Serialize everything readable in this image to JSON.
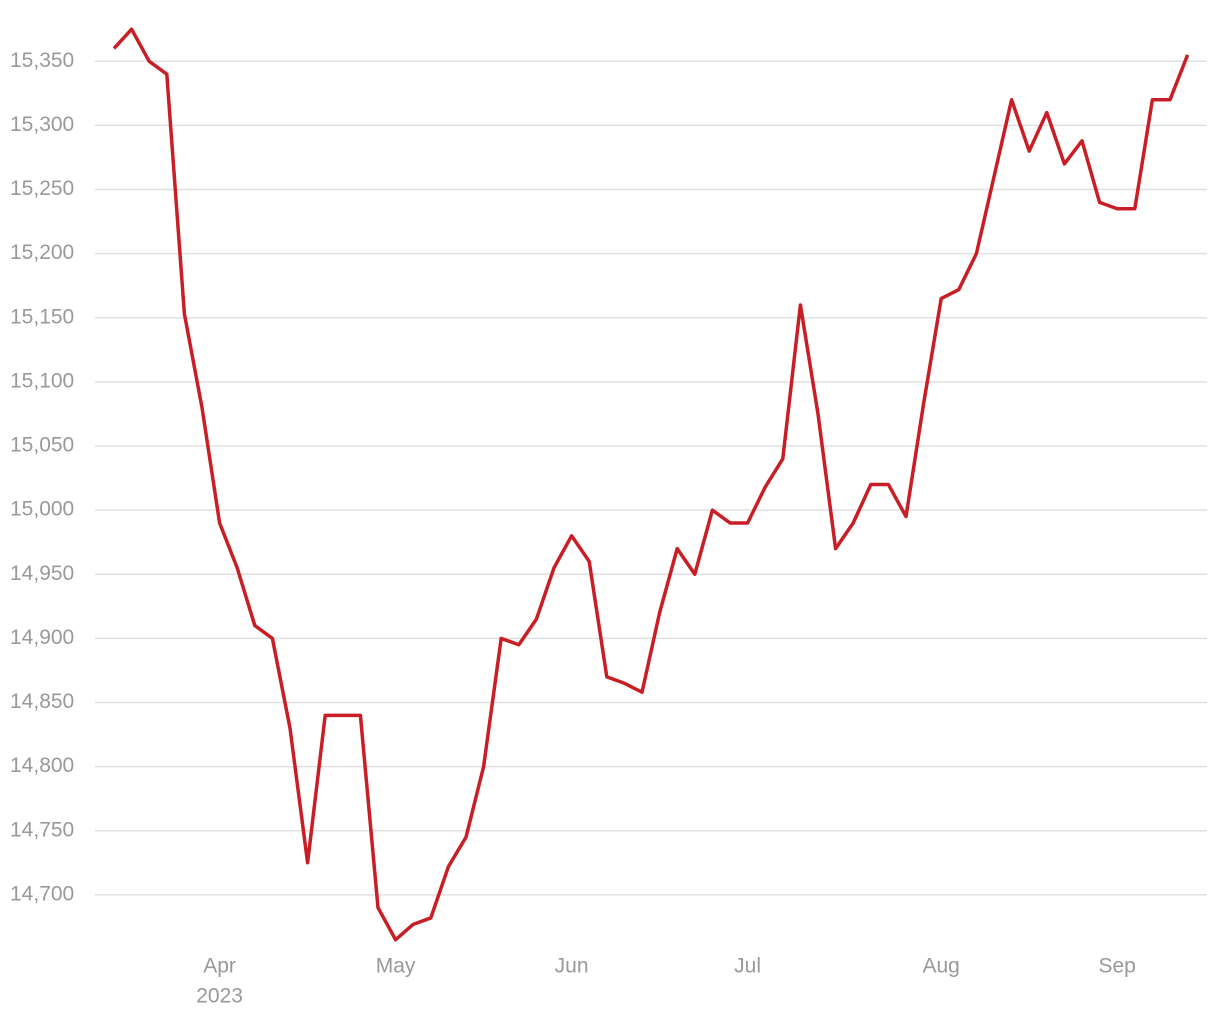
{
  "chart_data": {
    "type": "line",
    "categories": [
      null,
      null,
      null,
      null,
      null,
      null,
      "Apr",
      null,
      null,
      null,
      null,
      null,
      null,
      null,
      null,
      null,
      "May",
      null,
      null,
      null,
      null,
      null,
      null,
      null,
      null,
      null,
      "Jun",
      null,
      null,
      null,
      null,
      null,
      null,
      null,
      null,
      null,
      "Jul",
      null,
      null,
      null,
      null,
      null,
      null,
      null,
      null,
      null,
      null,
      "Aug",
      null,
      null,
      null,
      null,
      null,
      null,
      null,
      null,
      null,
      "Sep",
      null,
      null,
      null,
      null
    ],
    "x_year_label": "2023",
    "series": [
      {
        "color": "#c81e25",
        "values": [
          15360,
          15375,
          15350,
          15340,
          15153,
          15080,
          14990,
          14955,
          14910,
          14900,
          14830,
          14725,
          14840,
          14840,
          14840,
          14690,
          14665,
          14677,
          14682,
          14722,
          14745,
          14800,
          14900,
          14895,
          14915,
          14955,
          14980,
          14960,
          14870,
          14865,
          14858,
          14920,
          14970,
          14950,
          15000,
          14990,
          14990,
          15018,
          15040,
          15160,
          15075,
          14970,
          14990,
          15020,
          15020,
          14995,
          15083,
          15165,
          15172,
          15200,
          15260,
          15320,
          15280,
          15310,
          15270,
          15288,
          15240,
          15235,
          15235,
          15320,
          15320,
          15355
        ]
      }
    ],
    "ylim": [
      14657,
      15390
    ],
    "yticks": [
      {
        "value": 14700,
        "label": "14,700"
      },
      {
        "value": 14750,
        "label": "14,750"
      },
      {
        "value": 14800,
        "label": "14,800"
      },
      {
        "value": 14850,
        "label": "14,850"
      },
      {
        "value": 14900,
        "label": "14,900"
      },
      {
        "value": 14950,
        "label": "14,950"
      },
      {
        "value": 15000,
        "label": "15,000"
      },
      {
        "value": 15050,
        "label": "15,050"
      },
      {
        "value": 15100,
        "label": "15,100"
      },
      {
        "value": 15150,
        "label": "15,150"
      },
      {
        "value": 15200,
        "label": "15,200"
      },
      {
        "value": 15250,
        "label": "15,250"
      },
      {
        "value": 15300,
        "label": "15,300"
      },
      {
        "value": 15350,
        "label": "15,350"
      }
    ],
    "grid": true
  }
}
